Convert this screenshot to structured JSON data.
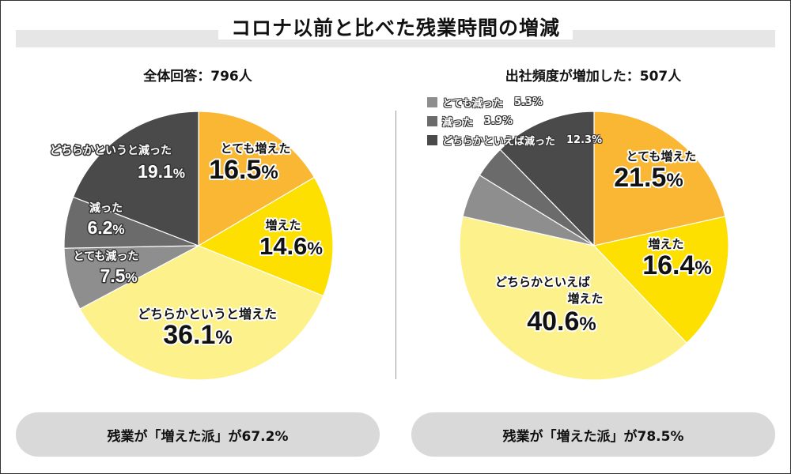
{
  "title": "コロナ以前と比べた残業時間の増減",
  "footers": [
    "残業が「増えた派」が67.2%",
    "残業が「増えた派」が78.5%"
  ],
  "colors": {
    "totemo_fueta": "#f9b733",
    "fueta": "#fde000",
    "dochiraka_fueta": "#fdf18c",
    "totemo_hetta": "#8e8e8e",
    "hetta": "#6b6b6b",
    "dochiraka_hetta": "#4a4a4a"
  },
  "chart_data": [
    {
      "type": "pie",
      "subtitle": "全体回答：796人",
      "slices": [
        {
          "label": "とても増えた",
          "value": 16.5,
          "display": "16.5%",
          "color": "#f9b733",
          "label_color": "#111111"
        },
        {
          "label": "増えた",
          "value": 14.6,
          "display": "14.6%",
          "color": "#fde000",
          "label_color": "#111111"
        },
        {
          "label": "どちらかというと増えた",
          "value": 36.1,
          "display": "36.1%",
          "color": "#fdf18c",
          "label_color": "#111111"
        },
        {
          "label": "とても減った",
          "value": 7.5,
          "display": "7.5%",
          "color": "#8e8e8e",
          "label_color": "#ffffff"
        },
        {
          "label": "減った",
          "value": 6.2,
          "display": "6.2%",
          "color": "#6b6b6b",
          "label_color": "#ffffff"
        },
        {
          "label": "どちらかというと減った",
          "value": 19.1,
          "display": "19.1%",
          "color": "#4a4a4a",
          "label_color": "#ffffff"
        }
      ]
    },
    {
      "type": "pie",
      "subtitle": "出社頻度が増加した：507人",
      "slices": [
        {
          "label": "とても増えた",
          "value": 21.5,
          "display": "21.5%",
          "color": "#f9b733",
          "label_color": "#111111"
        },
        {
          "label": "増えた",
          "value": 16.4,
          "display": "16.4%",
          "color": "#fde000",
          "label_color": "#111111"
        },
        {
          "label": "どちらかといえば増えた",
          "value": 40.6,
          "display": "40.6%",
          "color": "#fdf18c",
          "label_color": "#111111"
        },
        {
          "label": "とても減った",
          "value": 5.3,
          "display": "5.3%",
          "color": "#8e8e8e",
          "label_color": "#ffffff"
        },
        {
          "label": "減った",
          "value": 3.9,
          "display": "3.9%",
          "color": "#6b6b6b",
          "label_color": "#ffffff"
        },
        {
          "label": "どちらかといえば減った",
          "value": 12.3,
          "display": "12.3%",
          "color": "#4a4a4a",
          "label_color": "#ffffff"
        }
      ]
    }
  ]
}
